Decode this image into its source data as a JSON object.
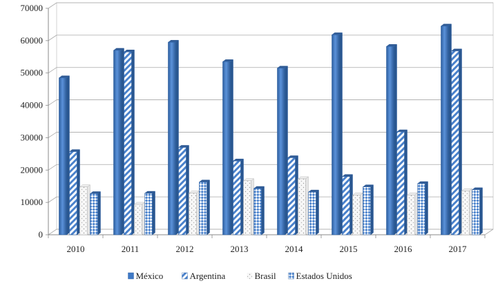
{
  "chart_data": {
    "type": "bar",
    "categories": [
      "2010",
      "2011",
      "2012",
      "2013",
      "2014",
      "2015",
      "2016",
      "2017"
    ],
    "series": [
      {
        "name": "México",
        "values": [
          48500,
          57000,
          59500,
          53500,
          51500,
          61800,
          58200,
          64500
        ],
        "color": "#3f79c6",
        "pattern": "solid"
      },
      {
        "name": "Argentina",
        "values": [
          25700,
          56500,
          27000,
          22800,
          23800,
          18000,
          31800,
          56800
        ],
        "color": "#3f79c6",
        "pattern": "diagonal-stripes"
      },
      {
        "name": "Brasil",
        "values": [
          14800,
          9400,
          12900,
          16700,
          17300,
          12300,
          12300,
          13600
        ],
        "color": "#9a9a9a",
        "pattern": "sparse-dots"
      },
      {
        "name": "Estados Unidos",
        "values": [
          12700,
          12800,
          16300,
          14300,
          13200,
          14800,
          15800,
          13900
        ],
        "color": "#3f79c6",
        "pattern": "checker"
      }
    ],
    "ylim": [
      0,
      70000
    ],
    "yticks": [
      "0",
      "10000",
      "20000",
      "30000",
      "40000",
      "50000",
      "60000",
      "70000"
    ],
    "grid": true,
    "legend_position": "bottom"
  }
}
